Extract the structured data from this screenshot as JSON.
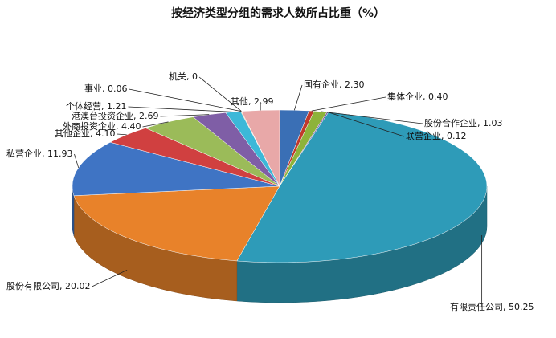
{
  "chart_data": {
    "type": "pie3d",
    "title": "按经济类型分组的需求人数所占比重（%）",
    "categories": [
      "国有企业",
      "集体企业",
      "股份合作企业",
      "联营企业",
      "有限责任公司",
      "股份有限公司",
      "私营企业",
      "其他企业",
      "外商投资企业",
      "港澳台投资企业",
      "个体经营",
      "事业",
      "机关",
      "其他"
    ],
    "values": [
      2.3,
      0.4,
      1.03,
      0.12,
      50.25,
      20.02,
      11.93,
      4.1,
      4.4,
      2.69,
      1.21,
      0.06,
      0,
      2.99
    ],
    "value_labels": [
      "2.30",
      "0.40",
      "1.03",
      "0.12",
      "50.25",
      "20.02",
      "11.93",
      "4.10",
      "4.40",
      "2.69",
      "1.21",
      "0.06",
      "0",
      "2.99"
    ],
    "label_separator": ", ",
    "colors": [
      "#3a6fb5",
      "#c0392b",
      "#8db33a",
      "#7a5aa0",
      "#2e9bb8",
      "#e8822a",
      "#3f74c4",
      "#d04040",
      "#9bbb59",
      "#7f5ea6",
      "#3cb8d8",
      "#f0a050",
      "#888888",
      "#e8a8a8"
    ]
  }
}
